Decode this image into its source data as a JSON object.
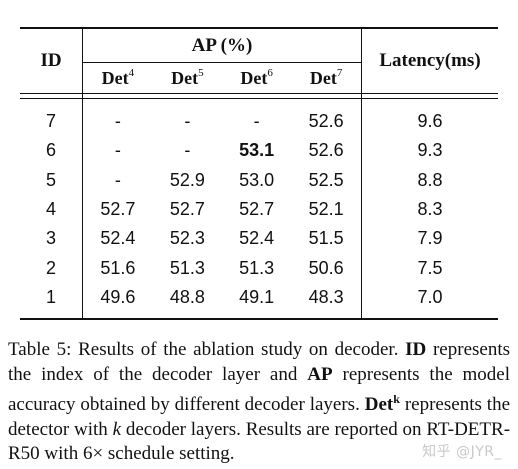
{
  "table": {
    "header": {
      "id": "ID",
      "ap_group": "AP (%)",
      "latency": "Latency(ms)",
      "det_columns": [
        {
          "base": "Det",
          "sup": "4"
        },
        {
          "base": "Det",
          "sup": "5"
        },
        {
          "base": "Det",
          "sup": "6"
        },
        {
          "base": "Det",
          "sup": "7"
        }
      ]
    },
    "rows": [
      {
        "id": "7",
        "det4": "-",
        "det5": "-",
        "det6": "-",
        "det7": "52.6",
        "latency": "9.6"
      },
      {
        "id": "6",
        "det4": "-",
        "det5": "-",
        "det6": "53.1",
        "det7": "52.6",
        "latency": "9.3"
      },
      {
        "id": "5",
        "det4": "-",
        "det5": "52.9",
        "det6": "53.0",
        "det7": "52.5",
        "latency": "8.8"
      },
      {
        "id": "4",
        "det4": "52.7",
        "det5": "52.7",
        "det6": "52.7",
        "det7": "52.1",
        "latency": "8.3"
      },
      {
        "id": "3",
        "det4": "52.4",
        "det5": "52.3",
        "det6": "52.4",
        "det7": "51.5",
        "latency": "7.9"
      },
      {
        "id": "2",
        "det4": "51.6",
        "det5": "51.3",
        "det6": "51.3",
        "det7": "50.6",
        "latency": "7.5"
      },
      {
        "id": "1",
        "det4": "49.6",
        "det5": "48.8",
        "det6": "49.1",
        "det7": "48.3",
        "latency": "7.0"
      }
    ]
  },
  "caption": {
    "p1": "Table 5: Results of the ablation study on decoder.",
    "id_bold": "ID",
    "p2": "represents the index of the decoder layer and",
    "ap_bold": "AP",
    "p3": "represents the model accuracy obtained by different decoder layers.",
    "det_bold": "Det",
    "det_sup": "k",
    "p4": "represents the detector with",
    "k_italic": "k",
    "p5": "decoder layers. Results are reported on RT-DETR-R50 with 6× schedule setting."
  },
  "watermark": "知乎 @JYR_"
}
